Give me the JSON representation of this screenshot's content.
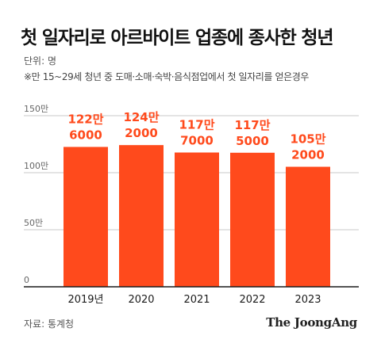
{
  "header": {
    "title": "첫 일자리로 아르바이트 업종에 종사한 청년",
    "unit": "단위: 명",
    "note": "※만 15~29세 청년 중 도매·소매·숙박·음식점업에서 첫 일자리를 얻은경우"
  },
  "footer": {
    "source": "자료: 통계청",
    "brand": "The JoongAng"
  },
  "colors": {
    "bar": "#ff4a1c",
    "label": "#ff4a1c",
    "grid": "#c8c8c8",
    "axis": "#1a1a1a",
    "tick": "#666666"
  },
  "chart_data": {
    "type": "bar",
    "categories": [
      "2019년",
      "2020",
      "2021",
      "2022",
      "2023"
    ],
    "values": [
      1226000,
      1242000,
      1177000,
      1175000,
      1052000
    ],
    "data_labels": [
      [
        "122만",
        "6000"
      ],
      [
        "124만",
        "2000"
      ],
      [
        "117만",
        "7000"
      ],
      [
        "117만",
        "5000"
      ],
      [
        "105만",
        "2000"
      ]
    ],
    "y_ticks": [
      {
        "value": 0,
        "label": "0"
      },
      {
        "value": 500000,
        "label": "50만"
      },
      {
        "value": 1000000,
        "label": "100만"
      },
      {
        "value": 1500000,
        "label": "150만"
      }
    ],
    "ylim": [
      0,
      1500000
    ],
    "grid": true,
    "legend": "none"
  }
}
